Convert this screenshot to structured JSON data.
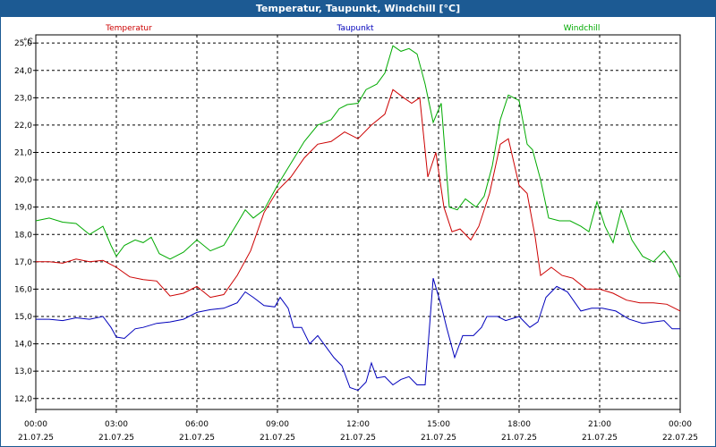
{
  "window": {
    "title": "Temperatur, Taupunkt, Windchill [°C]"
  },
  "colors": {
    "temperatur": "#cc0000",
    "taupunkt": "#0000bb",
    "windchill": "#00aa00",
    "titlebar": "#1c5a93"
  },
  "chart_data": {
    "type": "line",
    "title": "Temperatur, Taupunkt, Windchill [°C]",
    "ylabel": "°C",
    "ylim": [
      11.6,
      25.3
    ],
    "yticks": [
      "12,0",
      "13,0",
      "14,0",
      "15,0",
      "16,0",
      "17,0",
      "18,0",
      "19,0",
      "20,0",
      "21,0",
      "22,0",
      "23,0",
      "24,0",
      "25,0"
    ],
    "xlim": [
      0,
      24
    ],
    "xticks": [
      {
        "time": "00:00",
        "date": "21.07.25"
      },
      {
        "time": "03:00",
        "date": "21.07.25"
      },
      {
        "time": "06:00",
        "date": "21.07.25"
      },
      {
        "time": "09:00",
        "date": "21.07.25"
      },
      {
        "time": "12:00",
        "date": "21.07.25"
      },
      {
        "time": "15:00",
        "date": "21.07.25"
      },
      {
        "time": "18:00",
        "date": "21.07.25"
      },
      {
        "time": "21:00",
        "date": "21.07.25"
      },
      {
        "time": "00:00",
        "date": "22.07.25"
      }
    ],
    "legend": [
      {
        "name": "Temperatur",
        "color": "#cc0000"
      },
      {
        "name": "Taupunkt",
        "color": "#0000bb"
      },
      {
        "name": "Windchill",
        "color": "#00aa00"
      }
    ],
    "grid": true,
    "legend_placement": "top",
    "series": [
      {
        "name": "Temperatur",
        "color": "#cc0000",
        "points": [
          [
            0,
            17.0
          ],
          [
            0.5,
            17.0
          ],
          [
            1,
            16.95
          ],
          [
            1.5,
            17.1
          ],
          [
            2,
            17.0
          ],
          [
            2.5,
            17.05
          ],
          [
            3,
            16.8
          ],
          [
            3.5,
            16.45
          ],
          [
            4,
            16.35
          ],
          [
            4.5,
            16.3
          ],
          [
            5,
            15.75
          ],
          [
            5.5,
            15.85
          ],
          [
            6,
            16.1
          ],
          [
            6.5,
            15.7
          ],
          [
            7,
            15.8
          ],
          [
            7.5,
            16.5
          ],
          [
            8,
            17.4
          ],
          [
            8.5,
            18.8
          ],
          [
            9,
            19.6
          ],
          [
            9.5,
            20.1
          ],
          [
            10,
            20.8
          ],
          [
            10.5,
            21.3
          ],
          [
            11,
            21.4
          ],
          [
            11.5,
            21.75
          ],
          [
            12,
            21.5
          ],
          [
            12.5,
            22.0
          ],
          [
            13,
            22.4
          ],
          [
            13.3,
            23.3
          ],
          [
            13.7,
            23.0
          ],
          [
            14,
            22.8
          ],
          [
            14.3,
            23.0
          ],
          [
            14.6,
            20.1
          ],
          [
            14.9,
            21.0
          ],
          [
            15.2,
            19.0
          ],
          [
            15.5,
            18.1
          ],
          [
            15.8,
            18.2
          ],
          [
            16.2,
            17.8
          ],
          [
            16.5,
            18.3
          ],
          [
            16.9,
            19.5
          ],
          [
            17.3,
            21.3
          ],
          [
            17.6,
            21.5
          ],
          [
            18,
            19.8
          ],
          [
            18.3,
            19.5
          ],
          [
            18.6,
            17.9
          ],
          [
            18.8,
            16.5
          ],
          [
            19.2,
            16.8
          ],
          [
            19.6,
            16.5
          ],
          [
            20,
            16.4
          ],
          [
            20.5,
            16.0
          ],
          [
            21,
            16.0
          ],
          [
            21.5,
            15.85
          ],
          [
            22,
            15.6
          ],
          [
            22.5,
            15.5
          ],
          [
            23,
            15.5
          ],
          [
            23.5,
            15.45
          ],
          [
            24,
            15.2
          ]
        ]
      },
      {
        "name": "Taupunkt",
        "color": "#0000bb",
        "points": [
          [
            0,
            14.9
          ],
          [
            0.5,
            14.9
          ],
          [
            1,
            14.85
          ],
          [
            1.5,
            14.95
          ],
          [
            2,
            14.9
          ],
          [
            2.5,
            15.0
          ],
          [
            2.8,
            14.6
          ],
          [
            3,
            14.25
          ],
          [
            3.3,
            14.2
          ],
          [
            3.7,
            14.55
          ],
          [
            4,
            14.6
          ],
          [
            4.5,
            14.75
          ],
          [
            5,
            14.8
          ],
          [
            5.5,
            14.9
          ],
          [
            6,
            15.15
          ],
          [
            6.5,
            15.25
          ],
          [
            7,
            15.3
          ],
          [
            7.5,
            15.5
          ],
          [
            7.8,
            15.9
          ],
          [
            8.1,
            15.7
          ],
          [
            8.5,
            15.4
          ],
          [
            8.9,
            15.35
          ],
          [
            9.1,
            15.7
          ],
          [
            9.4,
            15.3
          ],
          [
            9.6,
            14.6
          ],
          [
            9.9,
            14.6
          ],
          [
            10.2,
            14.0
          ],
          [
            10.5,
            14.3
          ],
          [
            10.8,
            13.9
          ],
          [
            11.1,
            13.5
          ],
          [
            11.4,
            13.2
          ],
          [
            11.7,
            12.4
          ],
          [
            12,
            12.3
          ],
          [
            12.3,
            12.6
          ],
          [
            12.5,
            13.3
          ],
          [
            12.7,
            12.75
          ],
          [
            13,
            12.8
          ],
          [
            13.3,
            12.5
          ],
          [
            13.6,
            12.7
          ],
          [
            13.9,
            12.8
          ],
          [
            14.2,
            12.5
          ],
          [
            14.5,
            12.5
          ],
          [
            14.8,
            16.4
          ],
          [
            15.1,
            15.4
          ],
          [
            15.3,
            14.6
          ],
          [
            15.6,
            13.5
          ],
          [
            15.9,
            14.3
          ],
          [
            16.3,
            14.3
          ],
          [
            16.6,
            14.6
          ],
          [
            16.8,
            15.0
          ],
          [
            17.2,
            15.0
          ],
          [
            17.5,
            14.85
          ],
          [
            18,
            15.0
          ],
          [
            18.4,
            14.6
          ],
          [
            18.7,
            14.8
          ],
          [
            19,
            15.7
          ],
          [
            19.4,
            16.1
          ],
          [
            19.8,
            15.9
          ],
          [
            20.3,
            15.2
          ],
          [
            20.7,
            15.3
          ],
          [
            21.1,
            15.3
          ],
          [
            21.6,
            15.2
          ],
          [
            22.1,
            14.9
          ],
          [
            22.6,
            14.75
          ],
          [
            23,
            14.8
          ],
          [
            23.4,
            14.85
          ],
          [
            23.7,
            14.55
          ],
          [
            24,
            14.55
          ]
        ]
      },
      {
        "name": "Windchill",
        "color": "#00aa00",
        "points": [
          [
            0,
            18.5
          ],
          [
            0.5,
            18.6
          ],
          [
            1,
            18.45
          ],
          [
            1.5,
            18.4
          ],
          [
            2,
            18.0
          ],
          [
            2.5,
            18.3
          ],
          [
            2.8,
            17.6
          ],
          [
            3,
            17.2
          ],
          [
            3.3,
            17.6
          ],
          [
            3.7,
            17.8
          ],
          [
            4,
            17.7
          ],
          [
            4.3,
            17.9
          ],
          [
            4.6,
            17.3
          ],
          [
            5,
            17.1
          ],
          [
            5.5,
            17.35
          ],
          [
            6,
            17.8
          ],
          [
            6.5,
            17.4
          ],
          [
            7,
            17.6
          ],
          [
            7.5,
            18.4
          ],
          [
            7.8,
            18.9
          ],
          [
            8.1,
            18.6
          ],
          [
            8.5,
            18.9
          ],
          [
            9,
            19.8
          ],
          [
            9.5,
            20.6
          ],
          [
            10,
            21.4
          ],
          [
            10.5,
            22.0
          ],
          [
            11,
            22.2
          ],
          [
            11.3,
            22.6
          ],
          [
            11.6,
            22.75
          ],
          [
            12,
            22.8
          ],
          [
            12.3,
            23.3
          ],
          [
            12.7,
            23.5
          ],
          [
            13,
            23.9
          ],
          [
            13.3,
            24.9
          ],
          [
            13.6,
            24.7
          ],
          [
            13.9,
            24.8
          ],
          [
            14.2,
            24.6
          ],
          [
            14.5,
            23.5
          ],
          [
            14.8,
            22.1
          ],
          [
            15.1,
            22.8
          ],
          [
            15.4,
            19.0
          ],
          [
            15.7,
            18.9
          ],
          [
            16,
            19.3
          ],
          [
            16.4,
            19.0
          ],
          [
            16.7,
            19.4
          ],
          [
            17,
            20.5
          ],
          [
            17.3,
            22.2
          ],
          [
            17.6,
            23.1
          ],
          [
            18,
            22.9
          ],
          [
            18.3,
            21.3
          ],
          [
            18.5,
            21.1
          ],
          [
            18.8,
            20.0
          ],
          [
            19.1,
            18.6
          ],
          [
            19.5,
            18.5
          ],
          [
            19.9,
            18.5
          ],
          [
            20.3,
            18.3
          ],
          [
            20.6,
            18.1
          ],
          [
            20.9,
            19.2
          ],
          [
            21.2,
            18.3
          ],
          [
            21.5,
            17.7
          ],
          [
            21.8,
            18.9
          ],
          [
            22.2,
            17.8
          ],
          [
            22.6,
            17.2
          ],
          [
            23,
            17.0
          ],
          [
            23.4,
            17.4
          ],
          [
            23.7,
            17.0
          ],
          [
            24,
            16.4
          ]
        ]
      }
    ]
  }
}
